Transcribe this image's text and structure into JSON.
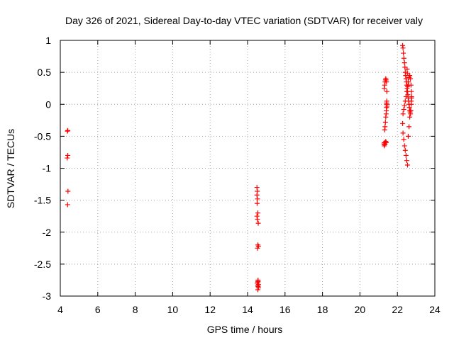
{
  "chart_data": {
    "type": "scatter",
    "title": "Day 326 of 2021, Sidereal Day-to-day VTEC variation (SDTVAR) for receiver valy",
    "xlabel": "GPS time / hours",
    "ylabel": "SDTVAR / TECUs",
    "xlim": [
      4,
      24
    ],
    "ylim": [
      -3,
      1
    ],
    "xticks": [
      "4",
      "6",
      "8",
      "10",
      "12",
      "14",
      "16",
      "18",
      "20",
      "22",
      "24"
    ],
    "yticks": [
      "1",
      "0.5",
      "0",
      "-0.5",
      "-1",
      "-1.5",
      "-2",
      "-2.5",
      "-3"
    ],
    "grid": true,
    "marker": "+",
    "series": [
      {
        "name": "SDTVAR",
        "color": "#ff0000",
        "x": [
          4.38,
          4.4,
          4.37,
          4.41,
          4.39,
          4.4,
          14.5,
          14.52,
          14.5,
          14.53,
          14.51,
          14.55,
          14.5,
          14.53,
          14.57,
          14.55,
          14.58,
          14.53,
          14.56,
          14.55,
          14.52,
          14.58,
          14.56,
          14.58,
          14.55,
          14.56,
          14.55,
          21.3,
          21.32,
          21.34,
          21.36,
          21.38,
          21.4,
          21.42,
          21.44,
          21.43,
          21.42,
          21.41,
          21.4,
          21.38,
          21.36,
          21.34,
          21.32,
          21.3,
          21.28,
          21.3,
          21.32,
          21.34,
          21.36,
          21.38,
          21.4,
          21.42,
          21.44,
          21.45,
          22.28,
          22.3,
          22.32,
          22.35,
          22.38,
          22.4,
          22.42,
          22.44,
          22.46,
          22.48,
          22.5,
          22.52,
          22.54,
          22.56,
          22.58,
          22.6,
          22.62,
          22.64,
          22.66,
          22.68,
          22.7,
          22.72,
          22.74,
          22.76,
          22.75,
          22.73,
          22.7,
          22.66,
          22.62,
          22.58,
          22.54,
          22.5,
          22.46,
          22.42,
          22.38,
          22.34,
          22.3,
          22.28,
          22.3,
          22.34,
          22.38,
          22.42,
          22.46,
          22.5,
          22.54,
          22.58,
          22.62,
          22.66,
          22.7,
          22.74,
          22.76,
          22.6,
          22.55,
          22.52
        ],
        "y": [
          -0.42,
          -0.8,
          -0.84,
          -1.36,
          -1.57,
          -0.41,
          -1.3,
          -1.36,
          -1.42,
          -1.48,
          -1.55,
          -1.7,
          -1.75,
          -1.8,
          -1.86,
          -2.2,
          -2.22,
          -2.25,
          -2.75,
          -2.78,
          -2.8,
          -2.82,
          -2.85,
          -2.87,
          -2.9,
          -2.77,
          -2.83,
          0.25,
          0.3,
          0.35,
          0.38,
          0.4,
          0.38,
          0.35,
          0.2,
          0.05,
          -0.05,
          -0.1,
          -0.15,
          -0.2,
          -0.28,
          -0.35,
          -0.4,
          -0.6,
          -0.62,
          -0.65,
          -0.63,
          -0.62,
          -0.6,
          -0.58,
          -0.6,
          0.02,
          0.0,
          -0.03,
          0.92,
          0.88,
          0.8,
          0.72,
          0.65,
          0.58,
          0.5,
          0.45,
          0.4,
          0.35,
          0.3,
          0.25,
          0.2,
          0.15,
          0.1,
          0.05,
          0.0,
          -0.05,
          -0.1,
          -0.12,
          -0.15,
          -0.1,
          0.0,
          0.1,
          0.2,
          0.3,
          0.4,
          0.45,
          0.42,
          0.35,
          0.28,
          0.2,
          0.12,
          0.05,
          -0.02,
          -0.08,
          -0.15,
          -0.3,
          -0.45,
          -0.55,
          -0.65,
          -0.72,
          -0.8,
          -0.88,
          -0.95,
          -0.5,
          -0.35,
          -0.2,
          -0.1,
          0.05,
          0.12,
          0.3,
          0.48,
          0.55
        ]
      }
    ]
  }
}
